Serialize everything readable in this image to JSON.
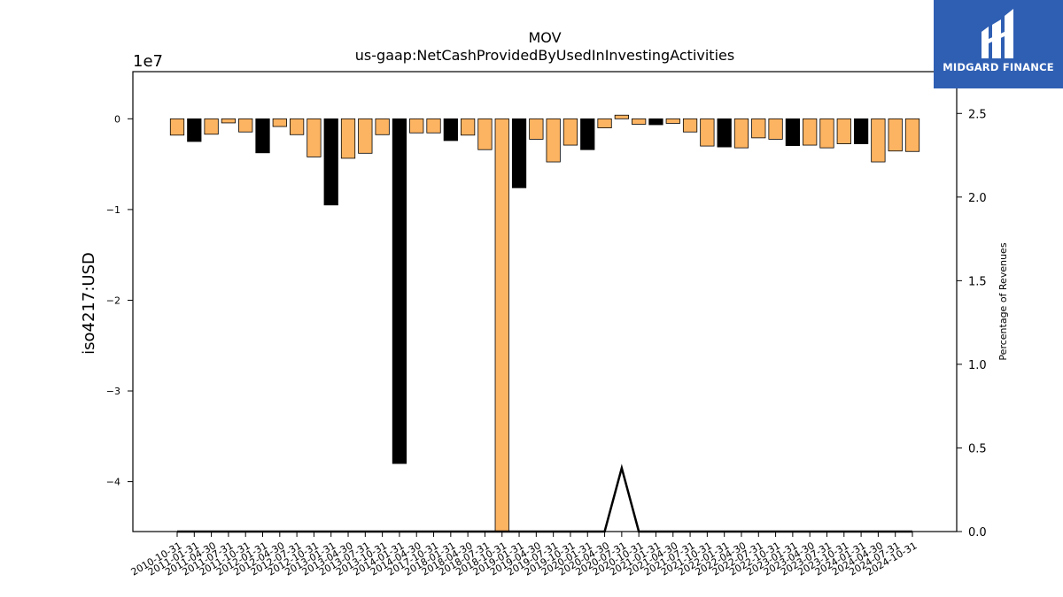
{
  "logo": {
    "text": "MIDGARD FINANCE",
    "color": "#2f5fb3"
  },
  "chart_data": {
    "type": "bar",
    "title": "MOV",
    "subtitle": "us-gaap:NetCashProvidedByUsedInInvestingActivities",
    "ylabel": "iso4217:USD",
    "y_offset_label": "1e7",
    "y2label": "Percentage of Revenues",
    "ylim": [
      -45500000,
      5200000
    ],
    "y2lim": [
      0,
      2.75
    ],
    "yticks": [
      0,
      -10000000,
      -20000000,
      -30000000,
      -40000000
    ],
    "ytick_labels": [
      "0",
      "−1",
      "−2",
      "−3",
      "−4"
    ],
    "y2ticks": [
      0,
      0.5,
      1,
      1.5,
      2,
      2.5
    ],
    "y2tick_labels": [
      "0.0",
      "0.5",
      "1.0",
      "1.5",
      "2.0",
      "2.5"
    ],
    "grid": false,
    "colors": {
      "annual": "#000000",
      "quarterly": "#fdb462",
      "edge": "#000000"
    },
    "categories": [
      "2010-10-31",
      "2011-01-31",
      "2011-04-30",
      "2011-07-31",
      "2011-10-31",
      "2012-01-31",
      "2012-04-30",
      "2012-07-31",
      "2012-10-31",
      "2013-01-31",
      "2013-04-30",
      "2013-07-31",
      "2013-10-31",
      "2014-01-31",
      "2014-04-30",
      "2017-10-31",
      "2018-01-31",
      "2018-04-30",
      "2018-07-31",
      "2018-10-31",
      "2019-01-31",
      "2019-04-30",
      "2019-07-31",
      "2019-10-31",
      "2020-01-31",
      "2020-04-30",
      "2020-07-31",
      "2020-10-31",
      "2021-01-31",
      "2021-04-30",
      "2021-07-31",
      "2021-10-31",
      "2022-01-31",
      "2022-04-30",
      "2022-07-31",
      "2022-10-31",
      "2023-01-31",
      "2023-04-30",
      "2023-07-31",
      "2023-10-31",
      "2024-01-31",
      "2024-04-30",
      "2024-07-31",
      "2024-10-31"
    ],
    "values": [
      -1800000,
      -2500000,
      -1700000,
      -450000,
      -1450000,
      -3750000,
      -850000,
      -1750000,
      -4200000,
      -9500000,
      -4350000,
      -3800000,
      -1750000,
      -38000000,
      -1550000,
      -1550000,
      -2400000,
      -1800000,
      -3400000,
      -45500000,
      -7600000,
      -2250000,
      -4750000,
      -2900000,
      -3400000,
      -1000000,
      400000,
      -600000,
      -650000,
      -500000,
      -1450000,
      -3000000,
      -3100000,
      -3200000,
      -2100000,
      -2250000,
      -2950000,
      -2900000,
      -3200000,
      -2750000,
      -2750000,
      -4750000,
      -3550000,
      -3600000
    ],
    "annual": [
      false,
      true,
      false,
      false,
      false,
      true,
      false,
      false,
      false,
      true,
      false,
      false,
      false,
      true,
      false,
      false,
      true,
      false,
      false,
      false,
      true,
      false,
      false,
      false,
      true,
      false,
      false,
      false,
      true,
      false,
      false,
      false,
      true,
      false,
      false,
      false,
      true,
      false,
      false,
      false,
      true,
      false,
      false,
      false
    ],
    "percentage_series": {
      "values": [
        0,
        0,
        0,
        0,
        0,
        0,
        0,
        0,
        0,
        0,
        0,
        0,
        0,
        0,
        0,
        0,
        0,
        0,
        0,
        0,
        0,
        0,
        0,
        0,
        0,
        0,
        0.38,
        0,
        0,
        0,
        0,
        0,
        0,
        0,
        0,
        0,
        0,
        0,
        0,
        0,
        0,
        0,
        0,
        0
      ]
    }
  }
}
